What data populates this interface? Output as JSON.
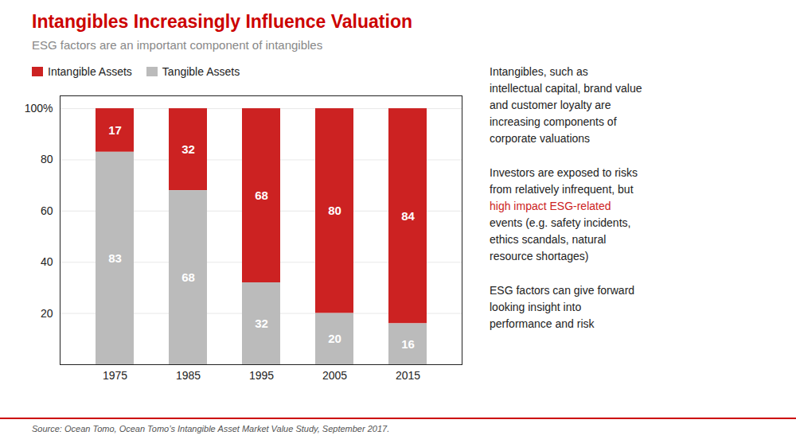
{
  "chart_data": {
    "type": "bar",
    "title": "Intangibles Increasingly Influence Valuation",
    "subtitle": "ESG factors are an important component of intangibles",
    "source": "Source: Ocean Tomo, Ocean Tomo’s Intangible Asset Market Value Study, September 2017.",
    "categories": [
      "1975",
      "1985",
      "1995",
      "2005",
      "2015"
    ],
    "stacked": true,
    "series": [
      {
        "name": "Intangible Assets",
        "color": "#cc2222",
        "values": [
          17,
          32,
          68,
          80,
          84
        ]
      },
      {
        "name": "Tangible Assets",
        "color": "#bbbbbb",
        "values": [
          83,
          68,
          32,
          20,
          16
        ]
      }
    ],
    "ylim": [
      0,
      105
    ],
    "yticks": [
      20,
      40,
      60,
      80,
      {
        "value": 100,
        "label": "100%"
      }
    ],
    "grid": true,
    "legend": "upper left",
    "data_labels": true,
    "annotations": [
      [
        {
          "text": "Intangibles, such as"
        },
        {
          "text": "intellectual capital, brand value"
        },
        {
          "text": "and customer loyalty are"
        },
        {
          "text": "increasing components of"
        },
        {
          "text": "corporate valuations"
        }
      ],
      [
        {
          "text": "Investors are exposed to risks"
        },
        {
          "text": "from relatively infrequent, but"
        },
        {
          "text": "high impact ESG-related",
          "color": "#cc2222"
        },
        {
          "text": "events (e.g. safety incidents,"
        },
        {
          "text": "ethics scandals, natural"
        },
        {
          "text": "resource shortages)"
        }
      ],
      [
        {
          "text": "ESG factors can give forward"
        },
        {
          "text": "looking insight into"
        },
        {
          "text": "performance and risk"
        }
      ]
    ]
  }
}
